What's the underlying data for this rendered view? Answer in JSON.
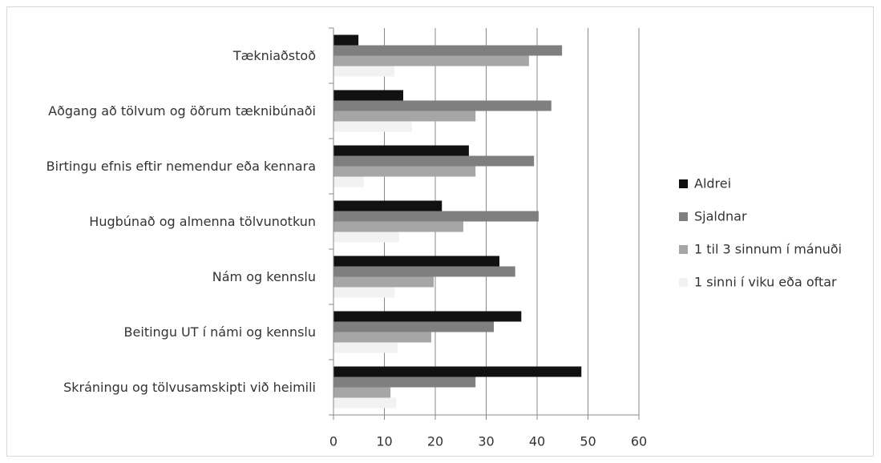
{
  "chart_data": {
    "type": "hbar",
    "categories": [
      "Tækniaðstoð",
      "Aðgang að tölvum og öðrum tæknibúnaði",
      "Birtingu efnis eftir nemendur eða kennara",
      "Hugbúnað og almenna tölvunotkun",
      "Nám og kennslu",
      "Beitingu UT í námi og kennslu",
      "Skráningu og tölvusamskipti við heimili"
    ],
    "series": [
      {
        "name": "Aldrei",
        "color": "#111111",
        "values": [
          4.9,
          13.7,
          26.6,
          21.3,
          32.6,
          36.9,
          48.7
        ]
      },
      {
        "name": "Sjaldnar",
        "color": "#7f7f7f",
        "values": [
          44.9,
          42.8,
          39.4,
          40.3,
          35.7,
          31.5,
          27.9
        ]
      },
      {
        "name": "1 til 3 sinnum í mánuði",
        "color": "#a6a6a6",
        "values": [
          38.4,
          27.9,
          27.9,
          25.5,
          19.7,
          19.2,
          11.2
        ]
      },
      {
        "name": "1 sinni í viku eða oftar",
        "color": "#f2f2f2",
        "values": [
          12,
          15.4,
          6,
          12.9,
          12,
          12.6,
          12.3
        ]
      }
    ],
    "xlim": [
      0,
      60
    ],
    "xticks": [
      0,
      10,
      20,
      30,
      40,
      50,
      60
    ],
    "grid": true,
    "legend": "right"
  }
}
